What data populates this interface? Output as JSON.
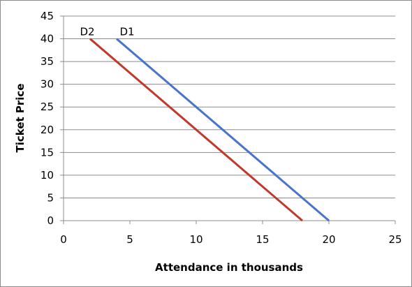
{
  "chart_data": {
    "type": "line",
    "title": "",
    "xlabel": "Attendance in thousands",
    "ylabel": "Ticket Price",
    "xlim": [
      0,
      25
    ],
    "ylim": [
      0,
      45
    ],
    "xticks": [
      0,
      5,
      10,
      15,
      20,
      25
    ],
    "yticks": [
      0,
      5,
      10,
      15,
      20,
      25,
      30,
      35,
      40,
      45
    ],
    "grid": "horizontal",
    "legend": "none",
    "series": [
      {
        "name": "D1",
        "color": "#4a74c9",
        "points": [
          {
            "x": 4,
            "y": 40
          },
          {
            "x": 20,
            "y": 0
          }
        ]
      },
      {
        "name": "D2",
        "color": "#c0392b",
        "points": [
          {
            "x": 2,
            "y": 40
          },
          {
            "x": 18,
            "y": 0
          }
        ]
      }
    ]
  }
}
